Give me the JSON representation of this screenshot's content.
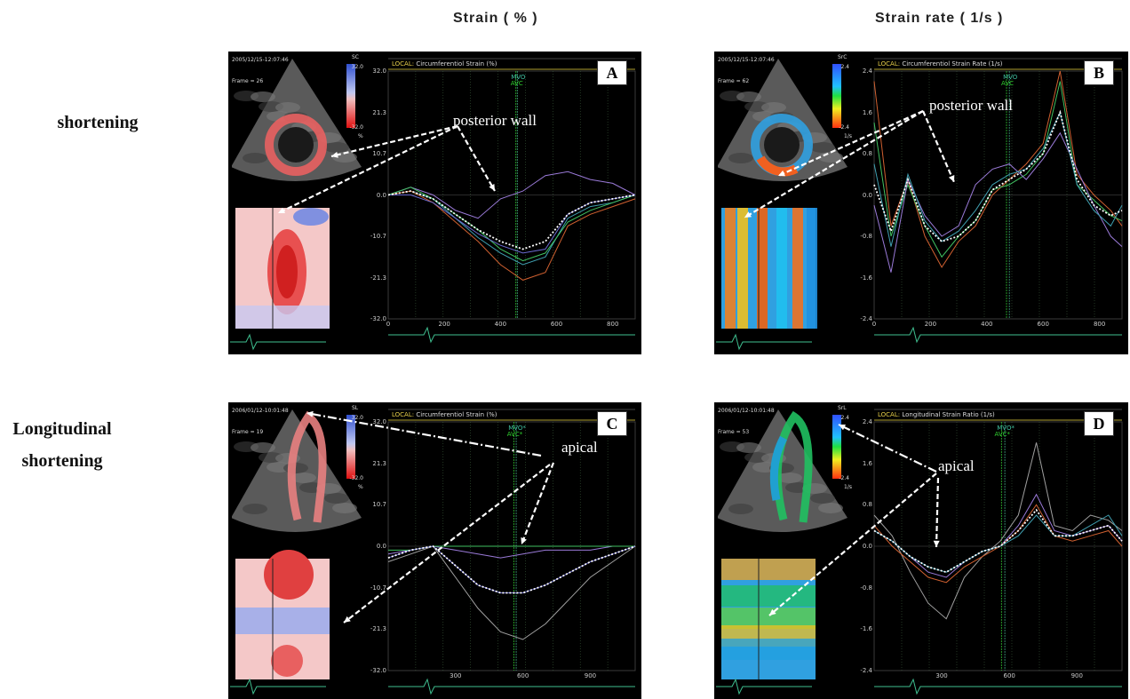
{
  "column_titles": [
    "Strain ( % )",
    "Strain rate ( 1/s )"
  ],
  "row_labels": [
    {
      "lines": [
        "shortening"
      ]
    },
    {
      "lines": [
        "Longitudinal",
        "shortening"
      ]
    }
  ],
  "panels": [
    {
      "letter": "A",
      "timestamp": "2005/12/15-12:07:46",
      "frame": "Frame = 26",
      "mode": "SC",
      "scale_max": "32.0",
      "scale_min": "-32.0",
      "scale_unit": "%",
      "local_label": "LOCAL:",
      "plot_title": "Circumferentiol Strain  (%)",
      "events": [
        "MVO",
        "AVC"
      ],
      "annotation": "posterior wall"
    },
    {
      "letter": "B",
      "timestamp": "2005/12/15-12:07:46",
      "frame": "Frame = 62",
      "mode": "SrC",
      "scale_max": "2.4",
      "scale_min": "-2.4",
      "scale_unit": "1/s",
      "local_label": "LOCAL:",
      "plot_title": "Circumferentiol Strain Rate  (1/s)",
      "events": [
        "MVO",
        "AVC"
      ],
      "annotation": "posterior wall"
    },
    {
      "letter": "C",
      "timestamp": "2006/01/12-10:01:48",
      "frame": "Frame = 19",
      "mode": "SL",
      "scale_max": "32.0",
      "scale_min": "-32.0",
      "scale_unit": "%",
      "local_label": "LOCAL:",
      "plot_title": "Circumferentiol Strain  (%)",
      "events": [
        "MVO*",
        "AVC*"
      ],
      "annotation": "apical"
    },
    {
      "letter": "D",
      "timestamp": "2006/01/12-10:01:48",
      "frame": "Frame = 53",
      "mode": "SrL",
      "scale_max": "2.4",
      "scale_min": "-2.4",
      "scale_unit": "1/s",
      "local_label": "LOCAL:",
      "plot_title": "Longitudinal Strain Ratio  (1/s)",
      "events": [
        "MVO*",
        "AVC*"
      ],
      "annotation": "apical"
    }
  ],
  "chart_data": [
    {
      "type": "line",
      "panel": "A",
      "title": "Circumferentiol Strain  (%)",
      "ylim": [
        -32,
        32
      ],
      "yticks": [
        "32.0",
        "21.3",
        "10.7",
        "0.0",
        "-10.7",
        "-21.3",
        "-32.0"
      ],
      "xlim": [
        0,
        880
      ],
      "xticks": [
        "0",
        "200",
        "400",
        "600",
        "800"
      ],
      "xtick_values": [
        0,
        200,
        400,
        600,
        800
      ],
      "events": [
        {
          "name": "MVO",
          "x": 460
        },
        {
          "name": "AVC",
          "x": 455
        }
      ],
      "series": [
        {
          "color": "#9a7ad8",
          "x": [
            0,
            80,
            160,
            240,
            320,
            400,
            480,
            560,
            640,
            720,
            800,
            880
          ],
          "y": [
            0,
            2,
            0,
            -4,
            -6,
            -1,
            1,
            5,
            6,
            4,
            3,
            0
          ]
        },
        {
          "color": "#3f9fb0",
          "x": [
            0,
            80,
            160,
            240,
            320,
            400,
            480,
            560,
            640,
            720,
            800,
            880
          ],
          "y": [
            0,
            1,
            -1,
            -6,
            -11,
            -15,
            -18,
            -16,
            -6,
            -3,
            -2,
            0
          ]
        },
        {
          "color": "#d06030",
          "x": [
            0,
            80,
            160,
            240,
            320,
            400,
            480,
            560,
            640,
            720,
            800,
            880
          ],
          "y": [
            0,
            1,
            -2,
            -7,
            -12,
            -18,
            -22,
            -20,
            -8,
            -5,
            -3,
            -1
          ]
        },
        {
          "color": "#40c060",
          "x": [
            0,
            80,
            160,
            240,
            320,
            400,
            480,
            560,
            640,
            720,
            800,
            880
          ],
          "y": [
            0,
            2,
            -1,
            -5,
            -9,
            -14,
            -17,
            -15,
            -7,
            -4,
            -2,
            0
          ]
        },
        {
          "color": "#6a6ad0",
          "x": [
            0,
            80,
            160,
            240,
            320,
            400,
            480,
            560,
            640,
            720,
            800,
            880
          ],
          "y": [
            0,
            0,
            -2,
            -6,
            -10,
            -13,
            -15,
            -14,
            -5,
            -2,
            -1,
            0
          ]
        },
        {
          "color": "#ffffff",
          "dashed": true,
          "x": [
            0,
            80,
            160,
            240,
            320,
            400,
            480,
            560,
            640,
            720,
            800,
            880
          ],
          "y": [
            0,
            1,
            -1,
            -5,
            -9,
            -12,
            -14,
            -12,
            -5,
            -2,
            -1,
            0
          ]
        }
      ]
    },
    {
      "type": "line",
      "panel": "B",
      "title": "Circumferentiol Strain Rate  (1/s)",
      "ylim": [
        -2.4,
        2.4
      ],
      "yticks": [
        "2.4",
        "1.6",
        "0.8",
        "0.0",
        "-0.8",
        "-1.6",
        "-2.4"
      ],
      "xlim": [
        0,
        880
      ],
      "xticks": [
        "0",
        "200",
        "400",
        "600",
        "800"
      ],
      "xtick_values": [
        0,
        200,
        400,
        600,
        800
      ],
      "events": [
        {
          "name": "MVO",
          "x": 480
        },
        {
          "name": "AVC",
          "x": 470
        }
      ],
      "series": [
        {
          "color": "#d06030",
          "x": [
            0,
            60,
            120,
            180,
            240,
            300,
            360,
            420,
            480,
            540,
            600,
            660,
            720,
            780,
            840,
            880
          ],
          "y": [
            2.2,
            -0.6,
            0.3,
            -0.8,
            -1.4,
            -0.9,
            -0.6,
            0.0,
            0.3,
            0.6,
            1.0,
            2.4,
            0.4,
            0.0,
            -0.3,
            -0.6
          ]
        },
        {
          "color": "#40c060",
          "x": [
            0,
            60,
            120,
            180,
            240,
            300,
            360,
            420,
            480,
            540,
            600,
            660,
            720,
            780,
            840,
            880
          ],
          "y": [
            1.4,
            -0.8,
            0.2,
            -0.6,
            -1.2,
            -0.8,
            -0.5,
            0.1,
            0.2,
            0.4,
            0.8,
            2.2,
            0.2,
            -0.1,
            -0.4,
            -0.5
          ]
        },
        {
          "color": "#9a7ad8",
          "x": [
            0,
            60,
            120,
            180,
            240,
            300,
            360,
            420,
            480,
            540,
            600,
            660,
            720,
            780,
            840,
            880
          ],
          "y": [
            -0.2,
            -1.5,
            0.3,
            -0.4,
            -0.8,
            -0.6,
            0.2,
            0.5,
            0.6,
            0.3,
            0.7,
            1.2,
            0.5,
            -0.2,
            -0.8,
            -1.0
          ]
        },
        {
          "color": "#3f9fb0",
          "x": [
            0,
            60,
            120,
            180,
            240,
            300,
            360,
            420,
            480,
            540,
            600,
            660,
            720,
            780,
            840,
            880
          ],
          "y": [
            0.6,
            -1.0,
            0.4,
            -0.5,
            -0.9,
            -0.7,
            -0.3,
            0.2,
            0.4,
            0.5,
            0.9,
            1.6,
            0.2,
            -0.3,
            -0.6,
            -0.2
          ]
        },
        {
          "color": "#ffffff",
          "dashed": true,
          "x": [
            0,
            60,
            120,
            180,
            240,
            300,
            360,
            420,
            480,
            540,
            600,
            660,
            720,
            780,
            840,
            880
          ],
          "y": [
            0.2,
            -0.7,
            0.3,
            -0.6,
            -0.9,
            -0.8,
            -0.5,
            0.1,
            0.3,
            0.5,
            0.8,
            1.6,
            0.3,
            -0.2,
            -0.4,
            -0.3
          ]
        }
      ]
    },
    {
      "type": "line",
      "panel": "C",
      "title": "Circumferentiol Strain  (%)",
      "ylim": [
        -32,
        32
      ],
      "yticks": [
        "32.0",
        "21.3",
        "10.7",
        "0.0",
        "-10.7",
        "-21.3",
        "-32.0"
      ],
      "xlim": [
        0,
        1100
      ],
      "xticks": [
        "300",
        "600",
        "900"
      ],
      "xtick_values": [
        300,
        600,
        900
      ],
      "events": [
        {
          "name": "MVO*",
          "x": 570
        },
        {
          "name": "AVC*",
          "x": 560
        }
      ],
      "series": [
        {
          "color": "#9a7ad8",
          "x": [
            0,
            100,
            200,
            300,
            400,
            500,
            600,
            700,
            800,
            900,
            1000,
            1100
          ],
          "y": [
            -2,
            -1,
            0,
            -1,
            -2,
            -3,
            -2,
            -1,
            -1,
            -1,
            0,
            0
          ]
        },
        {
          "color": "#40c060",
          "x": [
            0,
            100,
            200,
            300,
            400,
            500,
            600,
            700,
            800,
            900,
            1000,
            1100
          ],
          "y": [
            -1,
            -1,
            0,
            0,
            0,
            0,
            0,
            0,
            0,
            0,
            0,
            0
          ]
        },
        {
          "color": "#a0a0a0",
          "x": [
            0,
            100,
            200,
            300,
            400,
            500,
            600,
            700,
            800,
            900,
            1000,
            1100
          ],
          "y": [
            -4,
            -2,
            0,
            -8,
            -16,
            -22,
            -24,
            -20,
            -14,
            -8,
            -4,
            0
          ]
        },
        {
          "color": "#6a6ad0",
          "x": [
            0,
            100,
            200,
            300,
            400,
            500,
            600,
            700,
            800,
            900,
            1000,
            1100
          ],
          "y": [
            -3,
            -1,
            0,
            -5,
            -10,
            -12,
            -12,
            -10,
            -7,
            -4,
            -2,
            0
          ]
        },
        {
          "color": "#ffffff",
          "dashed": true,
          "x": [
            0,
            100,
            200,
            300,
            400,
            500,
            600,
            700,
            800,
            900,
            1000,
            1100
          ],
          "y": [
            -3,
            -1,
            0,
            -5,
            -10,
            -12,
            -12,
            -10,
            -7,
            -4,
            -2,
            0
          ]
        }
      ]
    },
    {
      "type": "line",
      "panel": "D",
      "title": "Longitudinal Strain Ratio  (1/s)",
      "ylim": [
        -2.4,
        2.4
      ],
      "yticks": [
        "2.4",
        "1.6",
        "0.8",
        "0.0",
        "-0.8",
        "-1.6",
        "-2.4"
      ],
      "xlim": [
        0,
        1100
      ],
      "xticks": [
        "300",
        "600",
        "900"
      ],
      "xtick_values": [
        300,
        600,
        900
      ],
      "events": [
        {
          "name": "MVO*",
          "x": 580
        },
        {
          "name": "AVC*",
          "x": 565
        }
      ],
      "series": [
        {
          "color": "#a0a0a0",
          "x": [
            0,
            80,
            160,
            240,
            320,
            400,
            480,
            560,
            640,
            720,
            800,
            880,
            960,
            1040,
            1100
          ],
          "y": [
            0.6,
            0.2,
            -0.5,
            -1.1,
            -1.4,
            -0.6,
            -0.2,
            0.1,
            0.6,
            2.0,
            0.4,
            0.3,
            0.6,
            0.5,
            0.3
          ]
        },
        {
          "color": "#9a7ad8",
          "x": [
            0,
            80,
            160,
            240,
            320,
            400,
            480,
            560,
            640,
            720,
            800,
            880,
            960,
            1040,
            1100
          ],
          "y": [
            0.3,
            0.1,
            -0.2,
            -0.5,
            -0.6,
            -0.3,
            -0.1,
            0.0,
            0.4,
            1.0,
            0.3,
            0.2,
            0.3,
            0.4,
            0.1
          ]
        },
        {
          "color": "#d06030",
          "x": [
            0,
            80,
            160,
            240,
            320,
            400,
            480,
            560,
            640,
            720,
            800,
            880,
            960,
            1040,
            1100
          ],
          "y": [
            0.4,
            0.0,
            -0.3,
            -0.6,
            -0.7,
            -0.4,
            -0.2,
            0.0,
            0.3,
            0.8,
            0.2,
            0.1,
            0.2,
            0.3,
            0.0
          ]
        },
        {
          "color": "#3f9fb0",
          "x": [
            0,
            80,
            160,
            240,
            320,
            400,
            480,
            560,
            640,
            720,
            800,
            880,
            960,
            1040,
            1100
          ],
          "y": [
            0.3,
            0.1,
            -0.2,
            -0.4,
            -0.5,
            -0.3,
            -0.1,
            0.0,
            0.2,
            0.6,
            0.2,
            0.2,
            0.4,
            0.6,
            0.2
          ]
        },
        {
          "color": "#ffffff",
          "dashed": true,
          "x": [
            0,
            80,
            160,
            240,
            320,
            400,
            480,
            560,
            640,
            720,
            800,
            880,
            960,
            1040,
            1100
          ],
          "y": [
            0.3,
            0.1,
            -0.2,
            -0.4,
            -0.5,
            -0.3,
            -0.1,
            0.0,
            0.3,
            0.7,
            0.2,
            0.2,
            0.3,
            0.4,
            0.1
          ]
        }
      ]
    }
  ]
}
